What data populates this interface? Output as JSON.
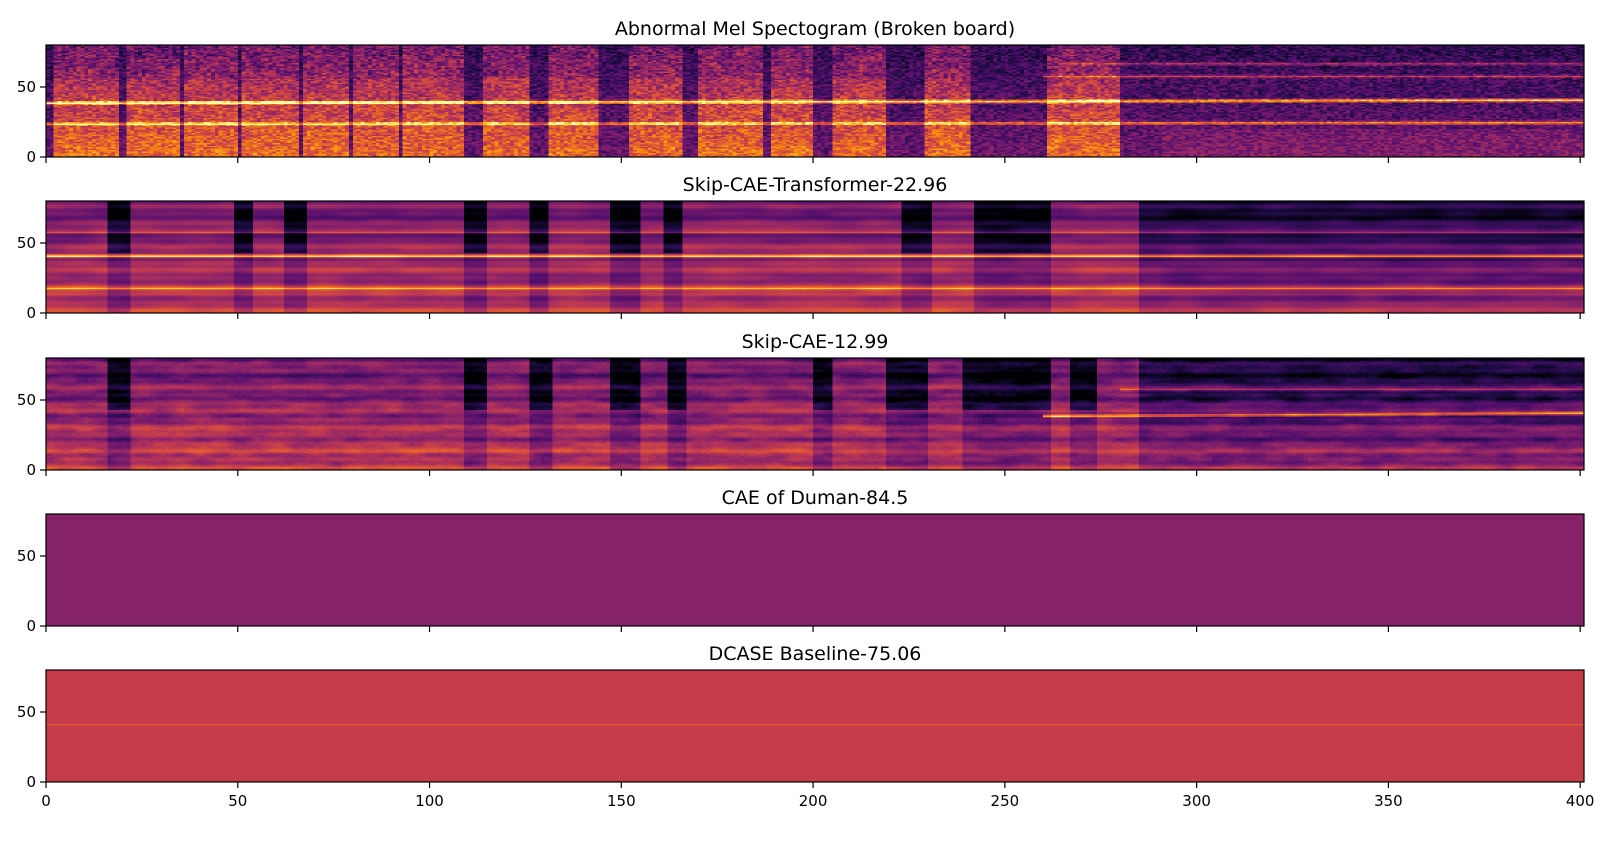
{
  "chart_data": {
    "type": "heatmap",
    "colormap": "inferno",
    "shared_x": {
      "xlim": [
        0,
        401
      ],
      "ticks": [
        0,
        50,
        100,
        150,
        200,
        250,
        300,
        350,
        400
      ],
      "tick_labels": [
        "0",
        "50",
        "100",
        "150",
        "200",
        "250",
        "300",
        "350",
        "400"
      ]
    },
    "y_ticks": [
      0,
      50
    ],
    "y_tick_labels": [
      "0",
      "50"
    ],
    "ylim": [
      0,
      80
    ],
    "panels": [
      {
        "title": "Abnormal Mel Spectogram (Broken board)",
        "kind": "spectrogram",
        "texture": "sharp",
        "active_segments": [
          [
            2,
            18
          ],
          [
            21,
            34
          ],
          [
            36,
            49
          ],
          [
            51,
            65
          ],
          [
            67,
            78
          ],
          [
            80,
            91
          ],
          [
            93,
            108
          ],
          [
            114,
            125
          ],
          [
            131,
            143
          ],
          [
            152,
            165
          ],
          [
            170,
            186
          ],
          [
            189,
            199
          ],
          [
            205,
            218
          ],
          [
            229,
            240
          ],
          [
            261,
            279
          ]
        ],
        "harmonic_lines": [
          {
            "y_start": 38,
            "y_end": 40,
            "x_from": 0,
            "x_to": 401,
            "strength": 0.75
          },
          {
            "y_start": 23,
            "y_end": 24,
            "x_from": 0,
            "x_to": 401,
            "strength": 0.5
          },
          {
            "y_start": 57,
            "y_end": 57,
            "x_from": 260,
            "x_to": 401,
            "strength": 0.35
          },
          {
            "y_start": 66,
            "y_end": 66,
            "x_from": 265,
            "x_to": 401,
            "strength": 0.25
          }
        ]
      },
      {
        "title": "Skip-CAE-Transformer-22.96",
        "kind": "reconstruction",
        "texture": "smooth",
        "dark_bursts": [
          [
            17,
            20
          ],
          [
            50,
            52
          ],
          [
            63,
            66
          ],
          [
            110,
            113
          ],
          [
            127,
            129
          ],
          [
            148,
            153
          ],
          [
            162,
            164
          ],
          [
            224,
            229
          ],
          [
            243,
            260
          ]
        ],
        "quiet_from": 285,
        "harmonic_lines": [
          {
            "y_start": 40,
            "y_end": 40,
            "x_from": 0,
            "x_to": 401,
            "strength": 0.6
          },
          {
            "y_start": 57,
            "y_end": 57,
            "x_from": 0,
            "x_to": 401,
            "strength": 0.3
          },
          {
            "y_start": 17,
            "y_end": 17,
            "x_from": 0,
            "x_to": 401,
            "strength": 0.35
          }
        ]
      },
      {
        "title": "Skip-CAE-12.99",
        "kind": "reconstruction",
        "texture": "medium",
        "dark_bursts": [
          [
            17,
            20
          ],
          [
            110,
            113
          ],
          [
            127,
            130
          ],
          [
            148,
            153
          ],
          [
            163,
            165
          ],
          [
            201,
            203
          ],
          [
            220,
            228
          ],
          [
            240,
            260
          ],
          [
            268,
            272
          ]
        ],
        "quiet_from": 285,
        "harmonic_lines": [
          {
            "y_start": 38,
            "y_end": 40,
            "x_from": 260,
            "x_to": 401,
            "strength": 0.6
          },
          {
            "y_start": 57,
            "y_end": 57,
            "x_from": 280,
            "x_to": 401,
            "strength": 0.3
          }
        ]
      },
      {
        "title": "CAE of Duman-84.5",
        "kind": "uniform",
        "fill_color": "#852268"
      },
      {
        "title": "DCASE Baseline-75.06",
        "kind": "uniform",
        "fill_color": "#c53b49",
        "line_color": "#e55c2f",
        "line_y": 41
      }
    ]
  }
}
